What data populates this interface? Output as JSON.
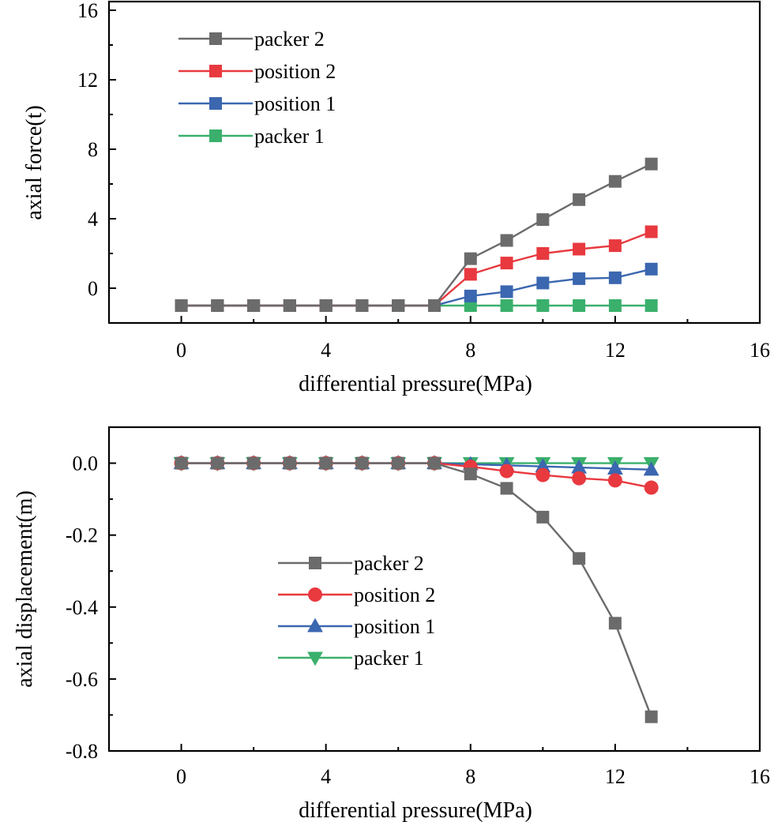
{
  "colors": {
    "packer2": "#6b6b6b",
    "position2": "#e8393f",
    "position1": "#3b67b0",
    "packer1": "#3ab06c"
  },
  "chart_data": [
    {
      "type": "line",
      "xlabel": "differential pressure(MPa)",
      "ylabel": "axial force(t)",
      "xlim": [
        -2.0,
        16
      ],
      "ylim": [
        -2.0,
        16.5
      ],
      "xticks": [
        0,
        4,
        8,
        12,
        16
      ],
      "yticks": [
        0,
        4,
        8,
        12,
        16
      ],
      "tick_labels_x": [
        "0",
        "4",
        "8",
        "12",
        "16"
      ],
      "tick_labels_y": [
        "0",
        "4",
        "8",
        "12",
        "16"
      ],
      "grid": false,
      "legend_position": "top-left",
      "x": [
        0,
        1,
        2,
        3,
        4,
        5,
        6,
        7,
        8,
        9,
        10,
        11,
        12,
        13
      ],
      "series": [
        {
          "name": "packer 2",
          "color_key": "packer2",
          "marker": "square",
          "values": [
            -1,
            -1,
            -1,
            -1,
            -1,
            -1,
            -1,
            -1,
            1.7,
            2.75,
            3.95,
            5.1,
            6.15,
            7.15
          ]
        },
        {
          "name": "position 2",
          "color_key": "position2",
          "marker": "square",
          "values": [
            -1,
            -1,
            -1,
            -1,
            -1,
            -1,
            -1,
            -1,
            0.8,
            1.45,
            2.0,
            2.25,
            2.45,
            3.25
          ]
        },
        {
          "name": "position 1",
          "color_key": "position1",
          "marker": "square",
          "values": [
            -1,
            -1,
            -1,
            -1,
            -1,
            -1,
            -1,
            -1,
            -0.45,
            -0.2,
            0.3,
            0.55,
            0.6,
            1.1
          ]
        },
        {
          "name": "packer 1",
          "color_key": "packer1",
          "marker": "square",
          "values": [
            -1,
            -1,
            -1,
            -1,
            -1,
            -1,
            -1,
            -1,
            -1,
            -1,
            -1,
            -1,
            -1,
            -1
          ]
        }
      ]
    },
    {
      "type": "line",
      "xlabel": "differential pressure(MPa)",
      "ylabel": "axial displacement(m)",
      "xlim": [
        -2.0,
        16
      ],
      "ylim": [
        -0.8,
        0.1
      ],
      "xticks": [
        0,
        4,
        8,
        12,
        16
      ],
      "yticks": [
        0.0,
        -0.2,
        -0.4,
        -0.6,
        -0.8
      ],
      "tick_labels_x": [
        "0",
        "4",
        "8",
        "12",
        "16"
      ],
      "tick_labels_y": [
        "0.0",
        "-0.2",
        "-0.4",
        "-0.6",
        "-0.8"
      ],
      "grid": false,
      "legend_position": "center",
      "x": [
        0,
        1,
        2,
        3,
        4,
        5,
        6,
        7,
        8,
        9,
        10,
        11,
        12,
        13
      ],
      "series": [
        {
          "name": "packer 2",
          "color_key": "packer2",
          "marker": "square",
          "values": [
            0,
            0,
            0,
            0,
            0,
            0,
            0,
            0,
            -0.03,
            -0.07,
            -0.15,
            -0.265,
            -0.445,
            -0.705
          ]
        },
        {
          "name": "position 2",
          "color_key": "position2",
          "marker": "circle",
          "values": [
            0,
            0,
            0,
            0,
            0,
            0,
            0,
            0,
            -0.01,
            -0.022,
            -0.033,
            -0.042,
            -0.048,
            -0.068
          ]
        },
        {
          "name": "position 1",
          "color_key": "position1",
          "marker": "triangle-up",
          "values": [
            0,
            0,
            0,
            0,
            0,
            0,
            0,
            0,
            -0.003,
            -0.006,
            -0.009,
            -0.012,
            -0.015,
            -0.018
          ]
        },
        {
          "name": "packer 1",
          "color_key": "packer1",
          "marker": "triangle-down",
          "values": [
            0,
            0,
            0,
            0,
            0,
            0,
            0,
            0,
            0,
            0,
            0,
            0,
            0,
            0
          ]
        }
      ]
    }
  ]
}
